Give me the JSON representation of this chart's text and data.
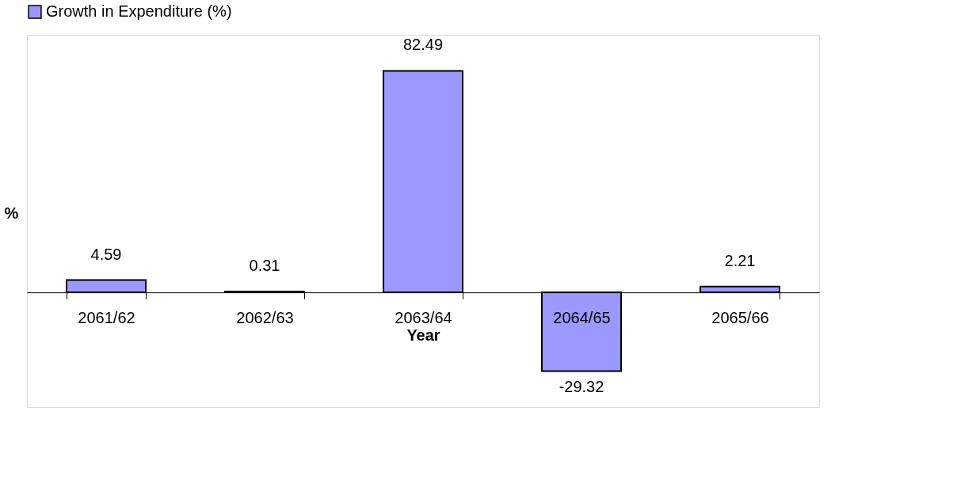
{
  "chart_data": {
    "type": "bar",
    "xlabel": "Year",
    "ylabel": "%",
    "categories": [
      "2061/62",
      "2062/63",
      "2063/64",
      "2064/65",
      "2065/66"
    ],
    "series": [
      {
        "name": "Growth in Expenditure (%)",
        "color": "#9999ff",
        "values": [
          4.59,
          0.31,
          82.49,
          -29.32,
          2.21
        ]
      }
    ],
    "data_labels": true,
    "legend": "top",
    "grid": false
  }
}
